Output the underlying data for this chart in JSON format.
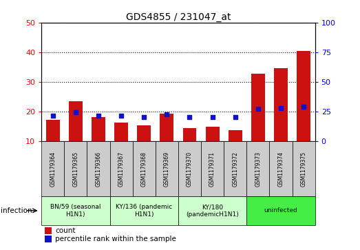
{
  "title": "GDS4855 / 231047_at",
  "samples": [
    "GSM1179364",
    "GSM1179365",
    "GSM1179366",
    "GSM1179367",
    "GSM1179368",
    "GSM1179369",
    "GSM1179370",
    "GSM1179371",
    "GSM1179372",
    "GSM1179373",
    "GSM1179374",
    "GSM1179375"
  ],
  "counts": [
    17.2,
    23.5,
    18.2,
    16.2,
    15.3,
    19.2,
    14.5,
    15.0,
    13.8,
    32.8,
    34.5,
    40.5
  ],
  "percentile_ranks": [
    21.5,
    24.5,
    21.5,
    21.5,
    20.2,
    22.5,
    20.2,
    20.2,
    20.2,
    27.5,
    27.8,
    29.0
  ],
  "bar_color": "#cc1111",
  "dot_color": "#1111cc",
  "ylim_left": [
    10,
    50
  ],
  "ylim_right": [
    0,
    100
  ],
  "yticks_left": [
    10,
    20,
    30,
    40,
    50
  ],
  "yticks_right": [
    0,
    25,
    50,
    75,
    100
  ],
  "groups": [
    {
      "label": "BN/59 (seasonal\nH1N1)",
      "start": 0,
      "end": 3,
      "color": "#ccffcc"
    },
    {
      "label": "KY/136 (pandemic\nH1N1)",
      "start": 3,
      "end": 6,
      "color": "#ccffcc"
    },
    {
      "label": "KY/180\n(pandemicH1N1)",
      "start": 6,
      "end": 9,
      "color": "#ccffcc"
    },
    {
      "label": "uninfected",
      "start": 9,
      "end": 12,
      "color": "#44ee44"
    }
  ],
  "infection_label": "infection",
  "legend_count_label": "count",
  "legend_pct_label": "percentile rank within the sample",
  "background_color": "#ffffff",
  "cell_bg_color": "#cccccc",
  "plot_bg_color": "#ffffff"
}
